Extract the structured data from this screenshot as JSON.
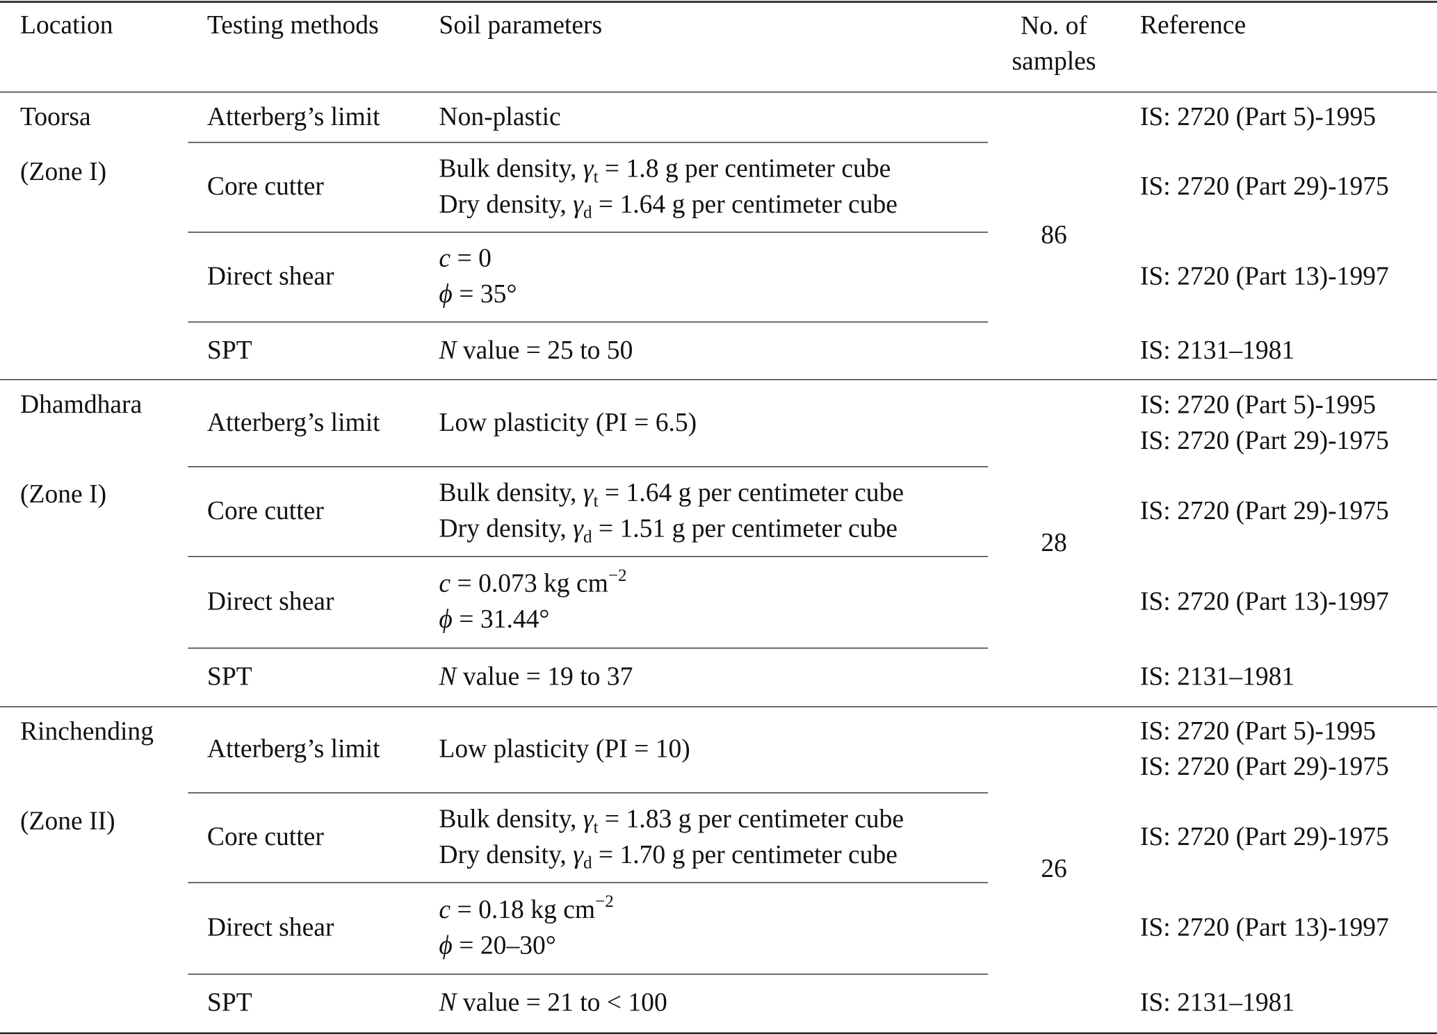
{
  "table": {
    "header": [
      "Location",
      "Testing methods",
      "Soil parameters",
      "No. of samples",
      "Reference"
    ],
    "groups": [
      {
        "location": "Toorsa",
        "zone": "(Zone I)",
        "samples": "86",
        "rows": [
          {
            "method": "Atterberg’s limit",
            "params": [
              [
                "Non-plastic"
              ]
            ],
            "reference": [
              "IS: 2720 (Part 5)-1995"
            ]
          },
          {
            "method": "Core cutter",
            "params": [
              [
                "Bulk density, ",
                {
                  "i": "γ"
                },
                {
                  "sub": "t"
                },
                " = 1.8 g per centimeter cube"
              ],
              [
                "Dry density, ",
                {
                  "i": "γ"
                },
                {
                  "sub": "d"
                },
                " = 1.64 g per centimeter cube"
              ]
            ],
            "reference": [
              "IS: 2720 (Part 29)-1975"
            ]
          },
          {
            "method": "Direct shear",
            "params": [
              [
                {
                  "i": "c"
                },
                " = 0"
              ],
              [
                {
                  "i": "ϕ"
                },
                " = 35°"
              ]
            ],
            "reference": [
              "IS: 2720 (Part 13)-1997"
            ]
          },
          {
            "method": "SPT",
            "params": [
              [
                {
                  "i": "N"
                },
                " value = 25 to 50"
              ]
            ],
            "reference": [
              "IS: 2131–1981"
            ]
          }
        ]
      },
      {
        "location": "Dhamdhara",
        "zone": "(Zone I)",
        "samples": "28",
        "rows": [
          {
            "method": "Atterberg’s limit",
            "params": [
              [
                "Low plasticity (PI = 6.5)"
              ]
            ],
            "reference": [
              "IS: 2720 (Part 5)-1995",
              "IS: 2720 (Part 29)-1975"
            ]
          },
          {
            "method": "Core cutter",
            "params": [
              [
                "Bulk density, ",
                {
                  "i": "γ"
                },
                {
                  "sub": "t"
                },
                " = 1.64 g per centimeter cube"
              ],
              [
                "Dry density, ",
                {
                  "i": "γ"
                },
                {
                  "sub": "d"
                },
                " = 1.51 g per centimeter cube"
              ]
            ],
            "reference": [
              "IS: 2720 (Part 29)-1975"
            ]
          },
          {
            "method": "Direct shear",
            "params": [
              [
                {
                  "i": "c"
                },
                " = 0.073 kg cm",
                {
                  "sup": "−2"
                }
              ],
              [
                {
                  "i": "ϕ"
                },
                " = 31.44°"
              ]
            ],
            "reference": [
              "IS: 2720 (Part 13)-1997"
            ]
          },
          {
            "method": "SPT",
            "params": [
              [
                {
                  "i": "N"
                },
                " value = 19 to 37"
              ]
            ],
            "reference": [
              "IS: 2131–1981"
            ]
          }
        ]
      },
      {
        "location": "Rinchending",
        "zone": "(Zone II)",
        "samples": "26",
        "rows": [
          {
            "method": "Atterberg’s limit",
            "params": [
              [
                "Low plasticity (PI = 10)"
              ]
            ],
            "reference": [
              "IS: 2720 (Part 5)-1995",
              "IS: 2720 (Part 29)-1975"
            ]
          },
          {
            "method": "Core cutter",
            "params": [
              [
                "Bulk density, ",
                {
                  "i": "γ"
                },
                {
                  "sub": "t"
                },
                " = 1.83 g per centimeter cube"
              ],
              [
                "Dry density, ",
                {
                  "i": "γ"
                },
                {
                  "sub": "d"
                },
                " = 1.70 g per centimeter cube"
              ]
            ],
            "reference": [
              "IS: 2720 (Part 29)-1975"
            ]
          },
          {
            "method": "Direct shear",
            "params": [
              [
                {
                  "i": "c"
                },
                " = 0.18 kg cm",
                {
                  "sup": "−2"
                }
              ],
              [
                {
                  "i": "ϕ"
                },
                " = 20–30°"
              ]
            ],
            "reference": [
              "IS: 2720 (Part 13)-1997"
            ]
          },
          {
            "method": "SPT",
            "params": [
              [
                {
                  "i": "N"
                },
                " value = 21 to < 100"
              ]
            ],
            "reference": [
              "IS: 2131–1981"
            ]
          }
        ]
      }
    ]
  }
}
